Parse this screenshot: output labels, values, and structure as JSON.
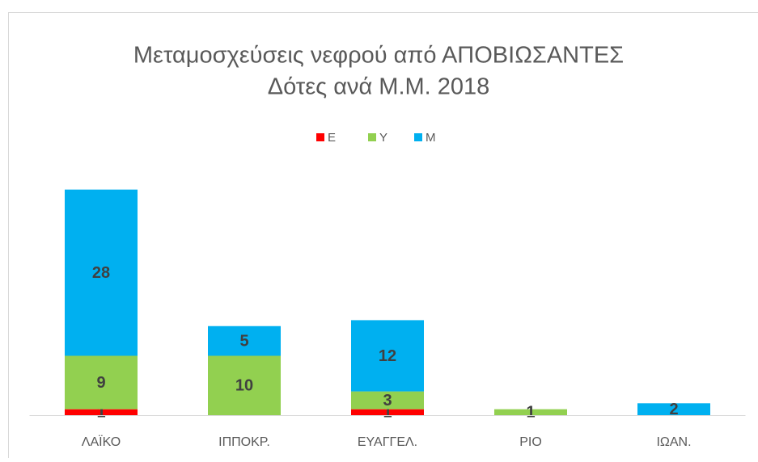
{
  "chart_data": {
    "type": "stacked_bar",
    "title": "Μεταμοσχεύσεις νεφρού από ΑΠΟΒΙΩΣΑΝΤΕΣ",
    "subtitle": "Δότες ανά Μ.Μ. 2018",
    "categories": [
      "ΛΑΪΚΟ",
      "ΙΠΠΟΚΡ.",
      "ΕΥΑΓΓΕΛ.",
      "ΡΙΟ",
      "ΙΩΑΝ."
    ],
    "series": [
      {
        "name": "Ε",
        "color": "#ff0000",
        "values": [
          1,
          0,
          1,
          0,
          0
        ]
      },
      {
        "name": "Υ",
        "color": "#92d050",
        "values": [
          9,
          10,
          3,
          1,
          0
        ]
      },
      {
        "name": "Μ",
        "color": "#00b0f0",
        "values": [
          28,
          5,
          12,
          0,
          2
        ]
      }
    ],
    "ylim": [
      0,
      40
    ],
    "legend": "top"
  }
}
